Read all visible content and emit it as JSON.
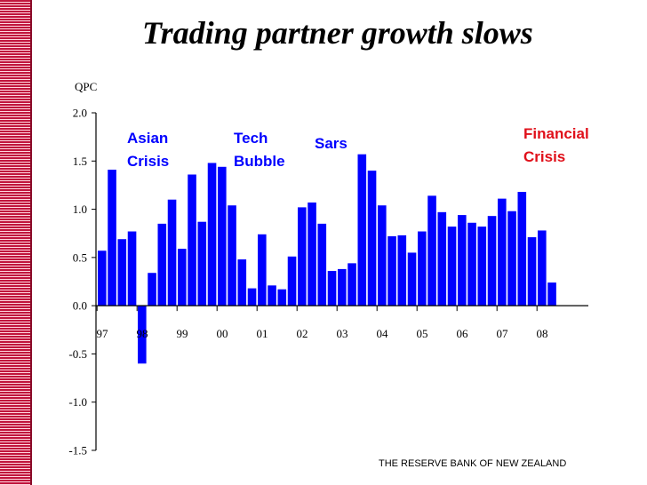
{
  "slide": {
    "title": "Trading partner growth slows",
    "footer": "THE RESERVE BANK OF NEW ZEALAND"
  },
  "chart_data": {
    "type": "bar",
    "title": "Trading partner growth slows",
    "ylabel": "QPC",
    "xlabel": "",
    "ylim": [
      -1.5,
      2.0
    ],
    "yticks": [
      2.0,
      1.5,
      1.0,
      0.5,
      0.0,
      -0.5,
      -1.0,
      -1.5
    ],
    "ytick_labels": [
      "2.0",
      "1.5",
      "1.0",
      "0.5",
      "0.0",
      "-0.5",
      "-1.0",
      "-1.5"
    ],
    "year_labels": [
      "97",
      "98",
      "99",
      "00",
      "01",
      "02",
      "03",
      "04",
      "05",
      "06",
      "07",
      "08"
    ],
    "first_quarter_index": 0,
    "bar_color": "#0000ff",
    "values": [
      0.57,
      1.41,
      0.69,
      0.77,
      -0.6,
      0.34,
      0.85,
      1.1,
      0.59,
      1.36,
      0.87,
      1.48,
      1.44,
      1.04,
      0.48,
      0.18,
      0.74,
      0.21,
      0.17,
      0.51,
      1.02,
      1.07,
      0.85,
      0.36,
      0.38,
      0.44,
      1.57,
      1.4,
      1.04,
      0.72,
      0.73,
      0.55,
      0.77,
      1.14,
      0.97,
      0.82,
      0.94,
      0.86,
      0.82,
      0.93,
      1.11,
      0.98,
      1.18,
      0.71,
      0.78,
      0.24
    ],
    "annotations": [
      {
        "name": "asian-crisis",
        "lines": [
          "Asian",
          "Crisis"
        ],
        "color": "#0000ff"
      },
      {
        "name": "tech-bubble",
        "lines": [
          "Tech",
          "Bubble"
        ],
        "color": "#0000ff"
      },
      {
        "name": "sars",
        "lines": [
          "Sars"
        ],
        "color": "#0000ff"
      },
      {
        "name": "financial-crisis",
        "lines": [
          "Financial",
          "Crisis"
        ],
        "color": "#e0101a"
      }
    ]
  }
}
